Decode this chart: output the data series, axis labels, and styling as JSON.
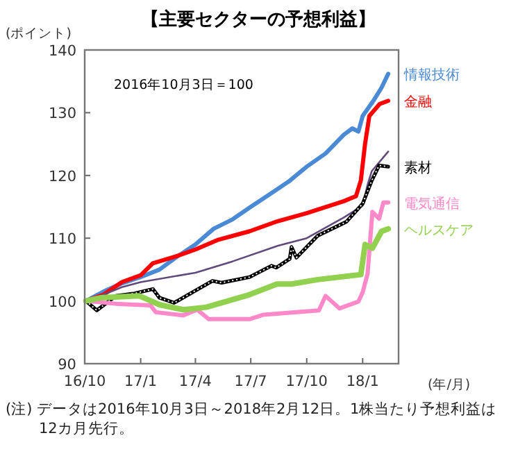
{
  "chart_data": {
    "type": "line",
    "title": "【主要セクターの予想利益】",
    "ylabel": "(ポイント)",
    "xlabel": "(年/月)",
    "annotations": [
      "2016年10月3日＝100",
      "(注) データは2016年10月3日～2018年2月12日。1株当たり予想利益は12カ月先行。"
    ],
    "xlim": [
      "2016-10-01",
      "2018-03-01"
    ],
    "xticks": [
      {
        "value": "2016-10-01",
        "label": "16/10"
      },
      {
        "value": "2017-01-01",
        "label": "17/1"
      },
      {
        "value": "2017-04-01",
        "label": "17/4"
      },
      {
        "value": "2017-07-01",
        "label": "17/7"
      },
      {
        "value": "2017-10-01",
        "label": "17/10"
      },
      {
        "value": "2018-01-01",
        "label": "18/1"
      }
    ],
    "ylim": [
      90,
      140
    ],
    "yticks": [
      90,
      100,
      110,
      120,
      130,
      140
    ],
    "series": [
      {
        "name": "情報技術",
        "color": "#4a8ad4",
        "x": [
          "2016-10-03",
          "2016-11-01",
          "2016-12-01",
          "2017-01-01",
          "2017-02-01",
          "2017-03-01",
          "2017-04-01",
          "2017-05-01",
          "2017-06-01",
          "2017-07-01",
          "2017-08-01",
          "2017-09-01",
          "2017-10-01",
          "2017-11-01",
          "2017-12-01",
          "2017-12-15",
          "2017-12-25",
          "2018-01-01",
          "2018-01-20",
          "2018-02-01",
          "2018-02-12"
        ],
        "values": [
          100,
          101.5,
          102.8,
          103.8,
          105,
          107,
          109,
          111.5,
          113,
          115,
          117,
          119,
          121.4,
          123.5,
          126.5,
          127.5,
          127,
          129.5,
          132.1,
          134,
          136.2
        ]
      },
      {
        "name": "金融",
        "color": "#ff0000",
        "x": [
          "2016-10-03",
          "2016-11-01",
          "2016-12-01",
          "2017-01-01",
          "2017-01-21",
          "2017-02-28",
          "2017-04-01",
          "2017-05-07",
          "2017-06-29",
          "2017-08-14",
          "2017-10-01",
          "2017-12-01",
          "2017-12-21",
          "2017-12-29",
          "2018-01-05",
          "2018-01-12",
          "2018-01-29",
          "2018-02-12"
        ],
        "values": [
          100,
          101,
          103,
          104.1,
          106,
          107.1,
          108.2,
          109.7,
          111.1,
          112.7,
          114,
          115.9,
          116.7,
          119.2,
          125.1,
          129.5,
          131.4,
          131.9
        ]
      },
      {
        "color": "#604a7b",
        "x": [
          "2016-10-03",
          "2016-11-01",
          "2016-12-01",
          "2017-01-01",
          "2017-04-01",
          "2017-06-01",
          "2017-08-15",
          "2017-10-01",
          "2017-12-01",
          "2018-01-01",
          "2018-01-09",
          "2018-01-16",
          "2018-02-12"
        ],
        "values": [
          100,
          101,
          102.2,
          103,
          104.5,
          106.3,
          108.8,
          110,
          113.3,
          115.2,
          118.5,
          120.7,
          123.8
        ]
      },
      {
        "name": "素材",
        "color": "#000000",
        "x": [
          "2016-10-03",
          "2016-10-21",
          "2016-11-21",
          "2016-12-22",
          "2017-01-21",
          "2017-02-01",
          "2017-02-25",
          "2017-03-31",
          "2017-04-29",
          "2017-05-14",
          "2017-06-29",
          "2017-08-04",
          "2017-08-12",
          "2017-09-03",
          "2017-09-06",
          "2017-09-14",
          "2017-10-19",
          "2017-12-05",
          "2018-01-01",
          "2018-01-16",
          "2018-01-28",
          "2018-02-12"
        ],
        "values": [
          100,
          98.5,
          100.8,
          101.2,
          101.9,
          100.5,
          99.7,
          101.6,
          103.2,
          102.9,
          103.8,
          105.6,
          105.3,
          106.7,
          108.6,
          106.9,
          110.4,
          112.6,
          115.5,
          119.2,
          121.6,
          121.4
        ]
      },
      {
        "name": "電気通信",
        "color": "#ff88c8",
        "x": [
          "2016-10-03",
          "2016-11-26",
          "2017-01-17",
          "2017-01-26",
          "2017-03-12",
          "2017-04-04",
          "2017-04-23",
          "2017-06-29",
          "2017-07-22",
          "2017-10-21",
          "2017-11-01",
          "2017-11-24",
          "2017-12-25",
          "2018-01-01",
          "2018-01-09",
          "2018-01-17",
          "2018-01-28",
          "2018-02-04",
          "2018-02-12"
        ],
        "values": [
          100,
          99.5,
          99.3,
          98.2,
          97.7,
          98.6,
          97.1,
          97.1,
          97.8,
          98.5,
          100.8,
          98.8,
          99.9,
          101.4,
          104.3,
          114.2,
          113.1,
          115.7,
          115.7
        ]
      },
      {
        "name": "ヘルスケア",
        "color": "#92d050",
        "x": [
          "2016-10-03",
          "2016-10-27",
          "2016-12-30",
          "2017-02-01",
          "2017-03-12",
          "2017-04-19",
          "2017-06-29",
          "2017-08-13",
          "2017-09-06",
          "2017-10-19",
          "2017-12-29",
          "2018-01-05",
          "2018-01-17",
          "2018-02-01",
          "2018-02-12"
        ],
        "values": [
          100,
          100.5,
          100.8,
          99.4,
          98.6,
          99,
          101,
          102.7,
          102.7,
          103.4,
          104.2,
          109,
          108.4,
          111.1,
          111.5
        ]
      }
    ]
  }
}
